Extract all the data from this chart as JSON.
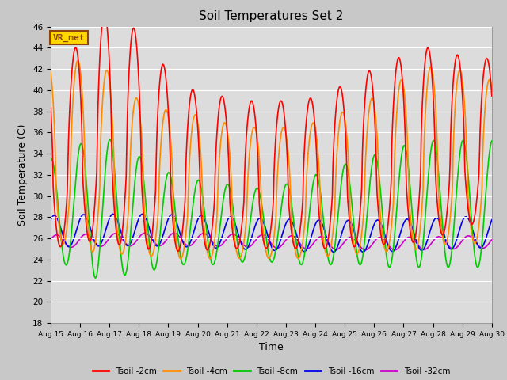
{
  "title": "Soil Temperatures Set 2",
  "xlabel": "Time",
  "ylabel": "Soil Temperature (C)",
  "xlim": [
    0,
    15
  ],
  "ylim": [
    18,
    46
  ],
  "yticks": [
    18,
    20,
    22,
    24,
    26,
    28,
    30,
    32,
    34,
    36,
    38,
    40,
    42,
    44,
    46
  ],
  "xtick_labels": [
    "Aug 15",
    "Aug 16",
    "Aug 17",
    "Aug 18",
    "Aug 19",
    "Aug 20",
    "Aug 21",
    "Aug 22",
    "Aug 23",
    "Aug 24",
    "Aug 25",
    "Aug 26",
    "Aug 27",
    "Aug 28",
    "Aug 29",
    "Aug 30"
  ],
  "annotation_text": "VR_met",
  "annotation_color": "#8B4513",
  "annotation_bg": "#FFD700",
  "background_color": "#DCDCDC",
  "grid_color": "#FFFFFF",
  "fig_bg": "#C8C8C8",
  "series": {
    "Tsoil -2cm": {
      "color": "#FF0000",
      "lw": 1.2
    },
    "Tsoil -4cm": {
      "color": "#FF8C00",
      "lw": 1.2
    },
    "Tsoil -8cm": {
      "color": "#00CC00",
      "lw": 1.2
    },
    "Tsoil -16cm": {
      "color": "#0000EE",
      "lw": 1.2
    },
    "Tsoil -32cm": {
      "color": "#CC00CC",
      "lw": 1.2
    }
  }
}
